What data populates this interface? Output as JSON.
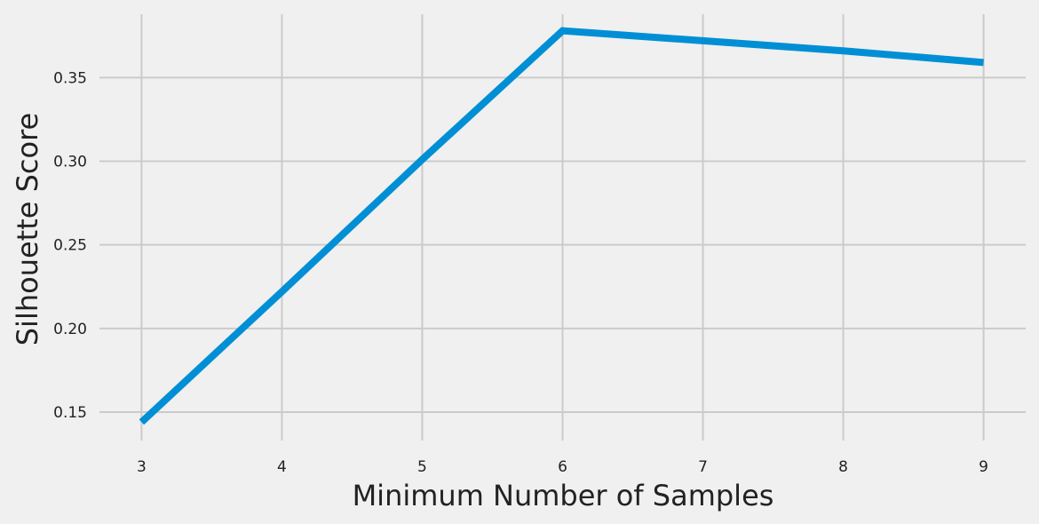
{
  "chart_data": {
    "type": "line",
    "title": "",
    "xlabel": "Minimum Number of Samples",
    "ylabel": "Silhouette Score",
    "x": [
      3,
      4,
      5,
      6,
      7,
      8,
      9
    ],
    "series": [
      {
        "values": [
          0.144,
          0.222,
          0.301,
          0.378,
          0.372,
          0.366,
          0.359
        ],
        "color": "#008fd5"
      }
    ],
    "xticks": [
      3,
      4,
      5,
      6,
      7,
      8,
      9
    ],
    "xtick_labels": [
      "3",
      "4",
      "5",
      "6",
      "7",
      "8",
      "9"
    ],
    "yticks": [
      0.15,
      0.2,
      0.25,
      0.3,
      0.35
    ],
    "ytick_labels": [
      "0.15",
      "0.20",
      "0.25",
      "0.30",
      "0.35"
    ],
    "xlim": [
      2.7,
      9.3
    ],
    "ylim": [
      0.133,
      0.39
    ],
    "grid": true,
    "background": "#f0f0f0",
    "grid_color": "#cbcbcb"
  }
}
